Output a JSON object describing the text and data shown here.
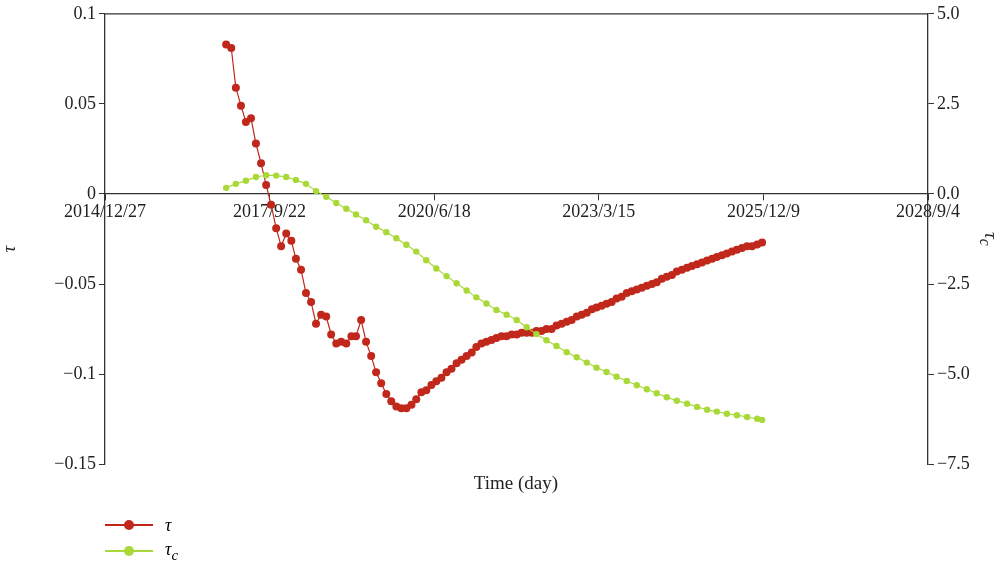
{
  "chart_data": {
    "type": "line",
    "xlabel": "Time (day)",
    "ylabel": "τ",
    "y2label": "τ$_{c}$",
    "x": [
      "2017-01",
      "2017-02",
      "2017-03",
      "2017-04",
      "2017-05",
      "2017-06",
      "2017-07",
      "2017-08",
      "2017-09",
      "2017-10",
      "2017-11",
      "2017-12",
      "2018-01",
      "2018-02",
      "2018-03",
      "2018-04",
      "2018-05",
      "2018-06",
      "2018-07",
      "2018-08",
      "2018-09",
      "2018-10",
      "2018-11",
      "2018-12",
      "2019-01",
      "2019-02",
      "2019-03",
      "2019-04",
      "2019-05",
      "2019-06",
      "2019-07",
      "2019-08",
      "2019-09",
      "2019-10",
      "2019-11",
      "2019-12",
      "2020-01",
      "2020-02",
      "2020-03",
      "2020-04",
      "2020-05",
      "2020-06",
      "2020-07",
      "2020-08",
      "2020-09",
      "2020-10",
      "2020-11",
      "2020-12",
      "2021-01",
      "2021-02",
      "2021-03",
      "2021-04",
      "2021-05",
      "2021-06",
      "2021-07",
      "2021-08",
      "2021-09",
      "2021-10",
      "2021-11",
      "2021-12",
      "2022-01",
      "2022-02",
      "2022-03",
      "2022-04",
      "2022-05",
      "2022-06",
      "2022-07",
      "2022-08",
      "2022-09",
      "2022-10",
      "2022-11",
      "2022-12",
      "2023-01",
      "2023-02",
      "2023-03",
      "2023-04",
      "2023-05",
      "2023-06",
      "2023-07",
      "2023-08",
      "2023-09",
      "2023-10",
      "2023-11",
      "2023-12",
      "2024-01",
      "2024-02",
      "2024-03",
      "2024-04",
      "2024-05",
      "2024-06",
      "2024-07",
      "2024-08",
      "2024-09",
      "2024-10",
      "2024-11",
      "2024-12",
      "2025-01",
      "2025-02",
      "2025-03",
      "2025-04",
      "2025-05",
      "2025-06",
      "2025-07",
      "2025-08",
      "2025-09",
      "2025-10",
      "2025-11",
      "2025-12"
    ],
    "series": [
      {
        "name": "τ",
        "color": "#c0281c",
        "values": [
          0.083,
          0.081,
          0.059,
          0.049,
          0.04,
          0.042,
          0.028,
          0.017,
          0.005,
          -0.006,
          -0.019,
          -0.029,
          -0.022,
          -0.026,
          -0.036,
          -0.042,
          -0.055,
          -0.06,
          -0.072,
          -0.067,
          -0.068,
          -0.078,
          -0.083,
          -0.082,
          -0.083,
          -0.079,
          -0.079,
          -0.07,
          -0.082,
          -0.09,
          -0.099,
          -0.105,
          -0.111,
          -0.115,
          -0.118,
          -0.119,
          -0.119,
          -0.117,
          -0.114,
          -0.11,
          -0.109,
          -0.106,
          -0.104,
          -0.102,
          -0.099,
          -0.097,
          -0.094,
          -0.092,
          -0.09,
          -0.088,
          -0.085,
          -0.083,
          -0.082,
          -0.081,
          -0.08,
          -0.079,
          -0.079,
          -0.078,
          -0.078,
          -0.077,
          -0.077,
          -0.077,
          -0.076,
          -0.076,
          -0.075,
          -0.075,
          -0.073,
          -0.072,
          -0.071,
          -0.07,
          -0.068,
          -0.067,
          -0.066,
          -0.064,
          -0.063,
          -0.062,
          -0.061,
          -0.06,
          -0.058,
          -0.057,
          -0.055,
          -0.054,
          -0.053,
          -0.052,
          -0.051,
          -0.05,
          -0.049,
          -0.047,
          -0.046,
          -0.045,
          -0.043,
          -0.042,
          -0.041,
          -0.04,
          -0.039,
          -0.038,
          -0.037,
          -0.036,
          -0.035,
          -0.034,
          -0.033,
          -0.032,
          -0.031,
          -0.03,
          -0.029,
          -0.029,
          -0.028,
          -0.027
        ]
      },
      {
        "name": "τ$_{c}$",
        "color": "#a9d938",
        "axis": "y2",
        "x": [
          "2017-01",
          "2017-03",
          "2017-05",
          "2017-07",
          "2017-09",
          "2017-11",
          "2018-01",
          "2018-03",
          "2018-05",
          "2018-07",
          "2018-09",
          "2018-11",
          "2019-01",
          "2019-03",
          "2019-05",
          "2019-07",
          "2019-09",
          "2019-11",
          "2020-01",
          "2020-03",
          "2020-05",
          "2020-07",
          "2020-09",
          "2020-11",
          "2021-01",
          "2021-03",
          "2021-05",
          "2021-07",
          "2021-09",
          "2021-11",
          "2022-01",
          "2022-03",
          "2022-05",
          "2022-07",
          "2022-09",
          "2022-11",
          "2023-01",
          "2023-03",
          "2023-05",
          "2023-07",
          "2023-09",
          "2023-11",
          "2024-01",
          "2024-03",
          "2024-05",
          "2024-07",
          "2024-09",
          "2024-11",
          "2025-01",
          "2025-03",
          "2025-05",
          "2025-07",
          "2025-09",
          "2025-11",
          "2025-12"
        ],
        "values": [
          0.17,
          0.28,
          0.37,
          0.47,
          0.52,
          0.51,
          0.47,
          0.39,
          0.28,
          0.08,
          -0.08,
          -0.25,
          -0.41,
          -0.57,
          -0.73,
          -0.91,
          -1.06,
          -1.23,
          -1.41,
          -1.6,
          -1.84,
          -2.07,
          -2.28,
          -2.48,
          -2.68,
          -2.87,
          -3.04,
          -3.22,
          -3.35,
          -3.5,
          -3.7,
          -3.89,
          -4.06,
          -4.22,
          -4.39,
          -4.53,
          -4.68,
          -4.82,
          -4.94,
          -5.07,
          -5.19,
          -5.31,
          -5.42,
          -5.53,
          -5.64,
          -5.74,
          -5.82,
          -5.91,
          -5.99,
          -6.04,
          -6.1,
          -6.14,
          -6.19,
          -6.24,
          -6.27
        ]
      }
    ],
    "xlim": [
      "2014-12-27",
      "2028-09-04"
    ],
    "xticks": [
      {
        "value": "2014-12-27",
        "label": "2014/12/27"
      },
      {
        "value": "2017-09-22",
        "label": "2017/9/22"
      },
      {
        "value": "2020-06-18",
        "label": "2020/6/18"
      },
      {
        "value": "2023-03-15",
        "label": "2023/3/15"
      },
      {
        "value": "2025-12-09",
        "label": "2025/12/9"
      },
      {
        "value": "2028-09-04",
        "label": "2028/9/4"
      }
    ],
    "ylim": [
      -0.15,
      0.1
    ],
    "yticks": [
      {
        "value": -0.15,
        "label": "−0.15"
      },
      {
        "value": -0.1,
        "label": "−0.1"
      },
      {
        "value": -0.05,
        "label": "−0.05"
      },
      0,
      0.05,
      0.1
    ],
    "y2lim": [
      -7.5,
      5
    ],
    "y2ticks": [
      {
        "value": -7.5,
        "label": "−7.5"
      },
      {
        "value": -5,
        "label": "−5.0"
      },
      {
        "value": -2.5,
        "label": "−2.5"
      },
      {
        "value": 0,
        "label": "0.0"
      },
      {
        "value": 2.5,
        "label": "2.5"
      },
      {
        "value": 5,
        "label": "5.0"
      }
    ],
    "grid": false,
    "legend": "bottom left",
    "marker": "circle",
    "line_style": "solid"
  }
}
